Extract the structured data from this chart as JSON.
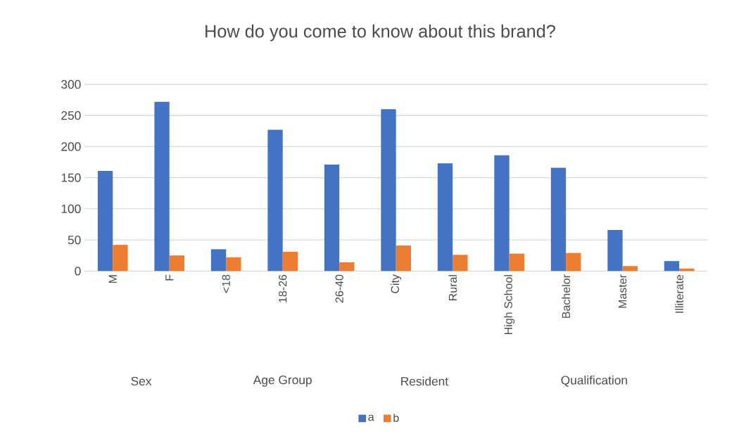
{
  "chart_data": {
    "type": "bar",
    "title": "How do you come to know about this brand?",
    "categories": [
      "M",
      "F",
      "<18",
      "18-26",
      "26-40",
      "City",
      "Rural",
      "High School",
      "Bachelor",
      "Master",
      "Illiterate"
    ],
    "series": [
      {
        "name": "a",
        "color": "#4472c4",
        "values": [
          161,
          272,
          35,
          227,
          171,
          260,
          173,
          186,
          166,
          66,
          16
        ]
      },
      {
        "name": "b",
        "color": "#ed7d31",
        "values": [
          42,
          25,
          22,
          31,
          14,
          41,
          26,
          28,
          29,
          8,
          4
        ]
      }
    ],
    "annotations": [
      "Sex",
      "Age Group",
      "Resident",
      "Qualification"
    ],
    "ylim": [
      0,
      300
    ],
    "yticks": [
      0,
      50,
      100,
      150,
      200,
      250,
      300
    ],
    "grid": "y",
    "legend": "bottom"
  }
}
